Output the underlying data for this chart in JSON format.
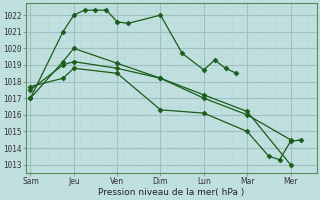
{
  "background_color": "#c0e0e0",
  "grid_major_color": "#a0c0c0",
  "grid_minor_color": "#b8d8d8",
  "line_color": "#1a5c1a",
  "xlabel": "Pression niveau de la mer( hPa )",
  "xtick_labels": [
    "Sam",
    "Jeu",
    "Ven",
    "Dim",
    "Lun",
    "Mar",
    "Mer"
  ],
  "xtick_positions": [
    0,
    2,
    4,
    6,
    8,
    10,
    12
  ],
  "ylim": [
    1012.5,
    1022.7
  ],
  "xlim": [
    -0.2,
    13.2
  ],
  "yticks": [
    1013,
    1014,
    1015,
    1016,
    1017,
    1018,
    1019,
    1020,
    1021,
    1022
  ],
  "series": [
    {
      "x": [
        0,
        1.5,
        2,
        2.5,
        3,
        3.5,
        4,
        4.5,
        6,
        7,
        8,
        8.5,
        9,
        9.5
      ],
      "y": [
        1017.0,
        1021.0,
        1022.0,
        1022.3,
        1022.3,
        1022.3,
        1021.6,
        1021.5,
        1022.0,
        1019.7,
        1018.7,
        1019.3,
        1018.8,
        1018.5
      ],
      "marker": "D",
      "markersize": 2.5
    },
    {
      "x": [
        0,
        1.5,
        2,
        4,
        6,
        8,
        10,
        12
      ],
      "y": [
        1017.0,
        1019.2,
        1020.0,
        1019.1,
        1018.2,
        1017.2,
        1016.2,
        1013.0
      ],
      "marker": "D",
      "markersize": 2.5
    },
    {
      "x": [
        0,
        1.5,
        2,
        4,
        6,
        8,
        10,
        12
      ],
      "y": [
        1017.5,
        1019.0,
        1019.2,
        1018.8,
        1018.2,
        1017.0,
        1016.0,
        1014.5
      ],
      "marker": "D",
      "markersize": 2.5
    },
    {
      "x": [
        0,
        1.5,
        2,
        4,
        6,
        8,
        10,
        11,
        11.5,
        12,
        12.5
      ],
      "y": [
        1017.7,
        1018.2,
        1018.8,
        1018.5,
        1016.3,
        1016.1,
        1015.0,
        1013.5,
        1013.3,
        1014.4,
        1014.5
      ],
      "marker": "D",
      "markersize": 2.5
    }
  ]
}
